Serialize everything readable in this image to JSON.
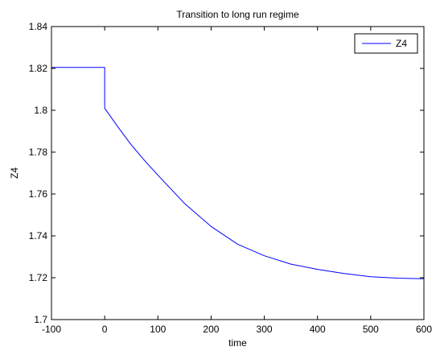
{
  "chart_data": {
    "type": "line",
    "title": "Transition to long run regime",
    "xlabel": "time",
    "ylabel": "Z4",
    "xlim": [
      -100,
      600
    ],
    "ylim": [
      1.7,
      1.84
    ],
    "xticks": [
      -100,
      0,
      100,
      200,
      300,
      400,
      500,
      600
    ],
    "xtick_labels": [
      "-100",
      "0",
      "100",
      "200",
      "300",
      "400",
      "500",
      "600"
    ],
    "yticks": [
      1.7,
      1.72,
      1.74,
      1.76,
      1.78,
      1.8,
      1.82,
      1.84
    ],
    "ytick_labels": [
      "1.7",
      "1.72",
      "1.74",
      "1.76",
      "1.78",
      "1.8",
      "1.82",
      "1.84"
    ],
    "grid": false,
    "legend_position": "top-right",
    "series": [
      {
        "name": "Z4",
        "color": "#0000ff",
        "x": [
          -100,
          0,
          0,
          25,
          50,
          75,
          100,
          150,
          200,
          250,
          300,
          350,
          400,
          450,
          500,
          550,
          600
        ],
        "y": [
          1.8205,
          1.8205,
          1.801,
          1.792,
          1.7835,
          1.776,
          1.769,
          1.7555,
          1.7445,
          1.736,
          1.7305,
          1.7265,
          1.724,
          1.722,
          1.7205,
          1.7198,
          1.7195
        ]
      }
    ]
  }
}
